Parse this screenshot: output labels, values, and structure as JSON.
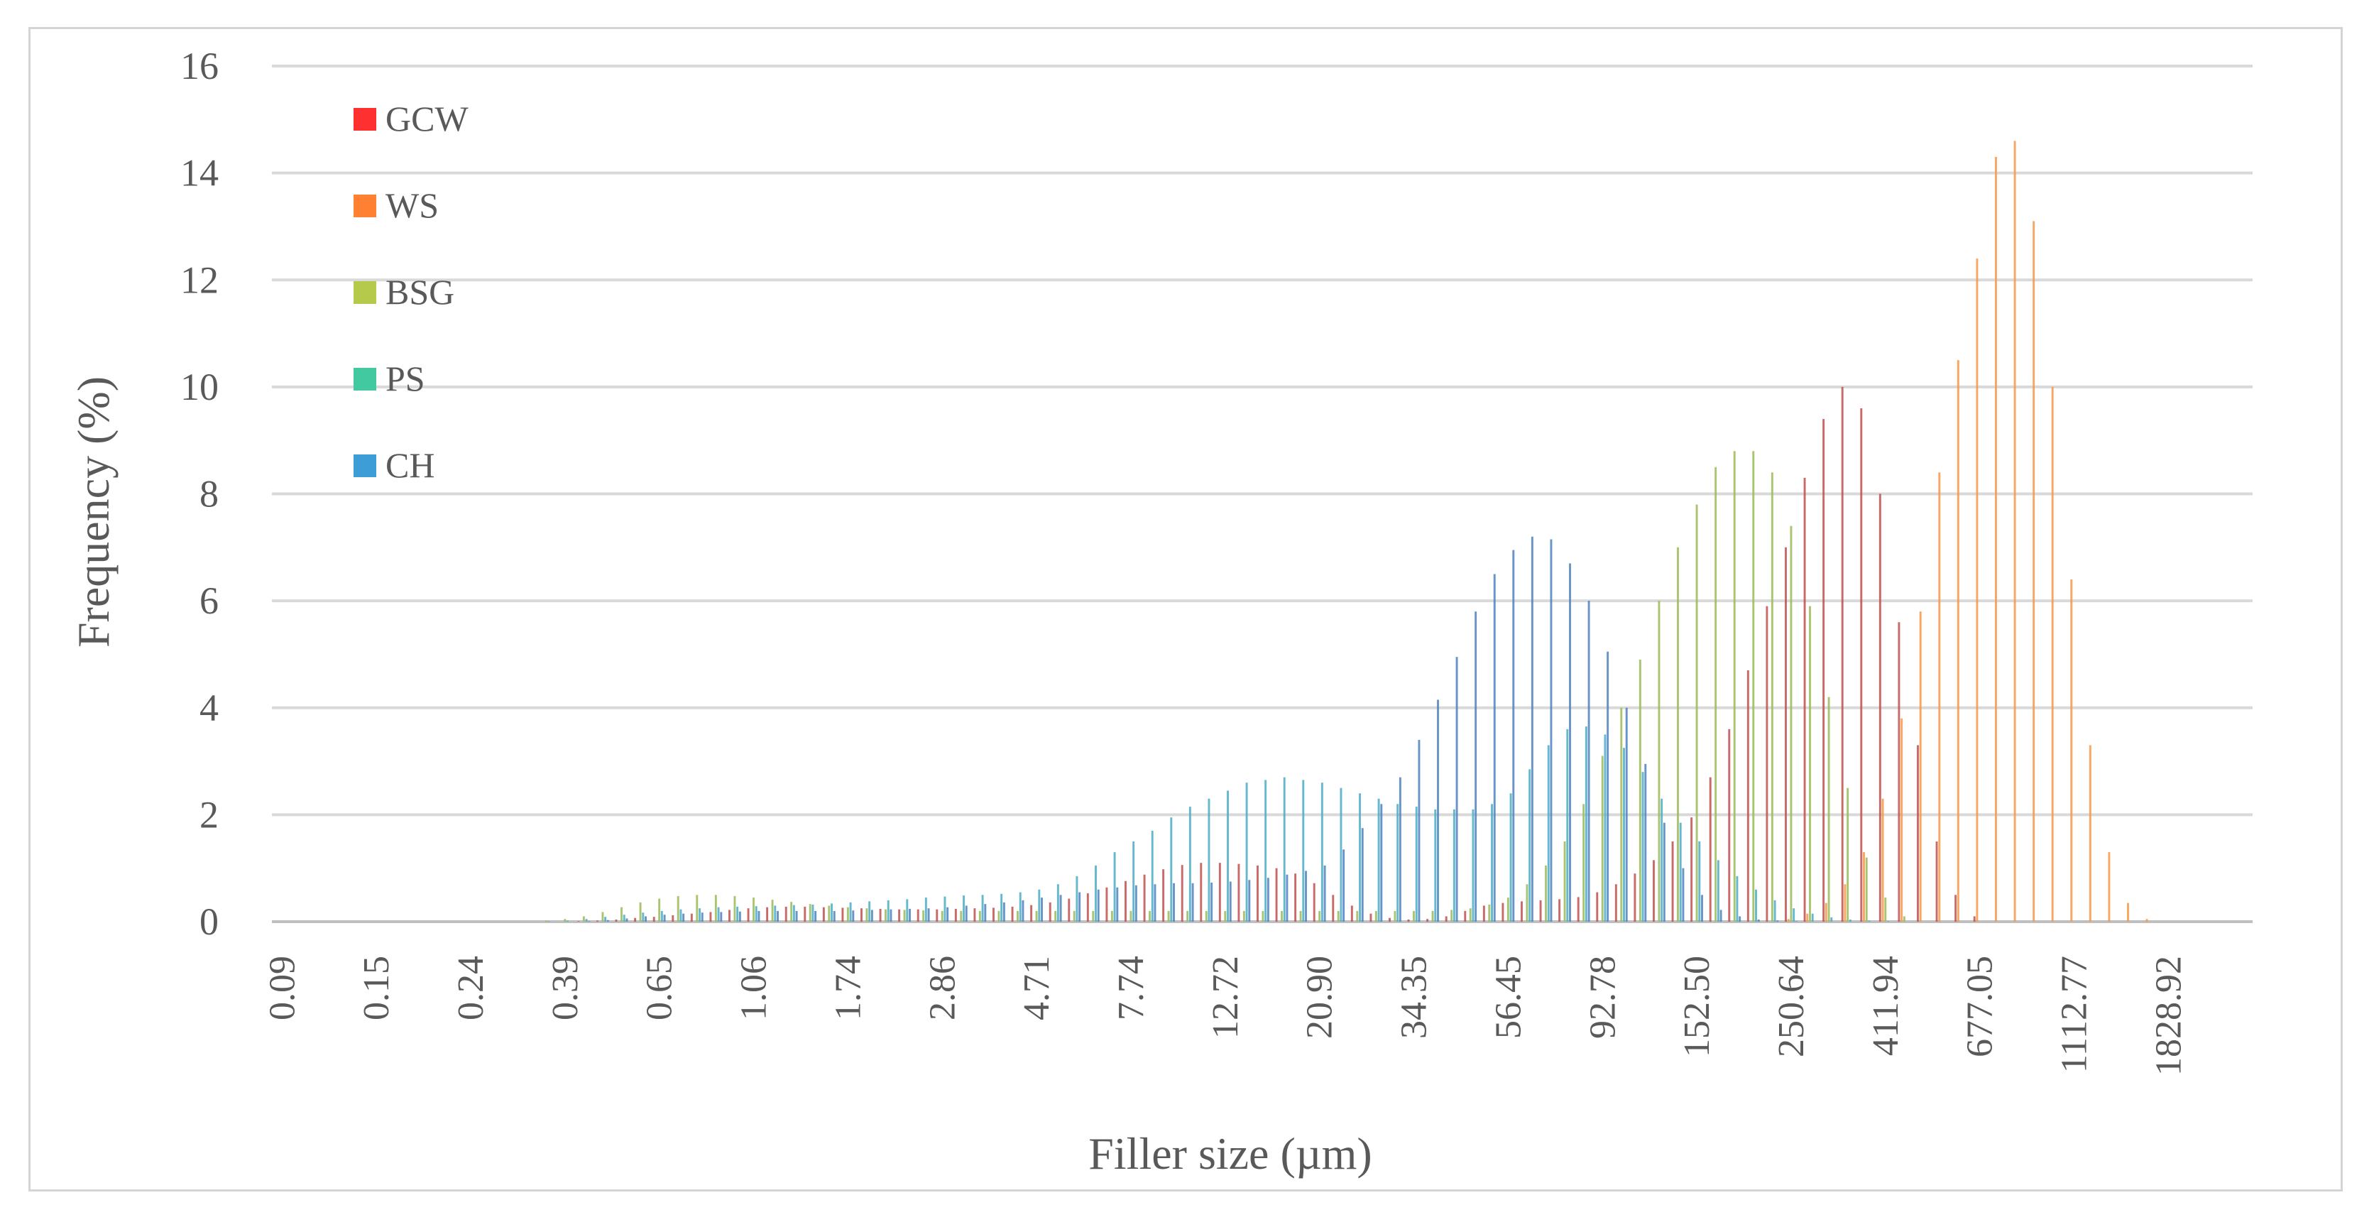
{
  "chart_data": {
    "type": "bar",
    "title": "",
    "xlabel": "Filler size (µm)",
    "ylabel": "Frequency (%)",
    "ylim": [
      0,
      16
    ],
    "yticks": [
      0,
      2,
      4,
      6,
      8,
      10,
      12,
      14,
      16
    ],
    "grid": "horizontal",
    "legend_position": "top-left",
    "x_tick_labels": [
      "0.09",
      "0.15",
      "0.24",
      "0.39",
      "0.65",
      "1.06",
      "1.74",
      "2.86",
      "4.71",
      "7.74",
      "12.72",
      "20.90",
      "34.35",
      "56.45",
      "92.78",
      "152.50",
      "250.64",
      "411.94",
      "677.05",
      "1112.77",
      "1828.92"
    ],
    "categories_per_tick": 5,
    "series": [
      {
        "name": "GCW",
        "color": "#c0504d",
        "values": [
          0,
          0,
          0,
          0,
          0,
          0,
          0,
          0,
          0,
          0,
          0,
          0,
          0,
          0,
          0,
          0,
          0.01,
          0.02,
          0.04,
          0.07,
          0.09,
          0.12,
          0.15,
          0.18,
          0.22,
          0.25,
          0.27,
          0.28,
          0.28,
          0.27,
          0.26,
          0.25,
          0.24,
          0.23,
          0.23,
          0.23,
          0.24,
          0.25,
          0.26,
          0.28,
          0.31,
          0.36,
          0.43,
          0.53,
          0.64,
          0.76,
          0.88,
          0.98,
          1.06,
          1.1,
          1.1,
          1.08,
          1.05,
          1.0,
          0.9,
          0.72,
          0.5,
          0.3,
          0.15,
          0.07,
          0.04,
          0.05,
          0.1,
          0.2,
          0.3,
          0.35,
          0.38,
          0.4,
          0.42,
          0.46,
          0.55,
          0.7,
          0.9,
          1.15,
          1.5,
          1.95,
          2.7,
          3.6,
          4.7,
          5.9,
          7.0,
          8.3,
          9.4,
          10.0,
          9.6,
          8.0,
          5.6,
          3.3,
          1.5,
          0.5,
          0.1,
          0,
          0,
          0,
          0,
          0,
          0,
          0,
          0,
          0,
          0,
          0,
          0,
          0,
          0
        ]
      },
      {
        "name": "WS",
        "color": "#f79646",
        "values": [
          0,
          0,
          0,
          0,
          0,
          0,
          0,
          0,
          0,
          0,
          0,
          0,
          0,
          0,
          0,
          0,
          0,
          0,
          0,
          0,
          0,
          0,
          0,
          0,
          0,
          0,
          0,
          0,
          0,
          0,
          0,
          0,
          0,
          0,
          0,
          0,
          0,
          0,
          0,
          0,
          0,
          0,
          0,
          0,
          0,
          0,
          0,
          0,
          0,
          0,
          0,
          0,
          0,
          0,
          0,
          0,
          0,
          0,
          0,
          0,
          0,
          0,
          0,
          0,
          0,
          0,
          0,
          0,
          0,
          0,
          0,
          0,
          0,
          0,
          0,
          0,
          0,
          0,
          0,
          0,
          0.05,
          0.15,
          0.35,
          0.7,
          1.3,
          2.3,
          3.8,
          5.8,
          8.4,
          10.5,
          12.4,
          14.3,
          14.6,
          13.1,
          10.0,
          6.4,
          3.3,
          1.3,
          0.35,
          0.05,
          0,
          0,
          0,
          0,
          0
        ]
      },
      {
        "name": "BSG",
        "color": "#9bbb59",
        "values": [
          0,
          0,
          0,
          0,
          0,
          0,
          0,
          0,
          0,
          0,
          0,
          0,
          0,
          0,
          0.02,
          0.05,
          0.1,
          0.18,
          0.27,
          0.36,
          0.43,
          0.48,
          0.5,
          0.5,
          0.48,
          0.45,
          0.41,
          0.37,
          0.33,
          0.3,
          0.27,
          0.25,
          0.23,
          0.22,
          0.21,
          0.2,
          0.2,
          0.2,
          0.2,
          0.2,
          0.2,
          0.2,
          0.2,
          0.2,
          0.2,
          0.2,
          0.2,
          0.2,
          0.2,
          0.2,
          0.2,
          0.2,
          0.2,
          0.2,
          0.2,
          0.2,
          0.2,
          0.2,
          0.2,
          0.2,
          0.2,
          0.2,
          0.22,
          0.25,
          0.32,
          0.45,
          0.7,
          1.05,
          1.5,
          2.2,
          3.1,
          4.0,
          4.9,
          6.0,
          7.0,
          7.8,
          8.5,
          8.8,
          8.8,
          8.4,
          7.4,
          5.9,
          4.2,
          2.5,
          1.2,
          0.45,
          0.1,
          0,
          0,
          0,
          0,
          0,
          0,
          0,
          0,
          0,
          0,
          0,
          0,
          0,
          0
        ]
      },
      {
        "name": "PS",
        "color": "#4bacc6",
        "values": [
          0,
          0,
          0,
          0,
          0,
          0,
          0,
          0,
          0,
          0,
          0,
          0,
          0,
          0,
          0.01,
          0.02,
          0.05,
          0.09,
          0.13,
          0.17,
          0.2,
          0.23,
          0.25,
          0.27,
          0.28,
          0.29,
          0.3,
          0.31,
          0.32,
          0.34,
          0.36,
          0.38,
          0.4,
          0.42,
          0.45,
          0.47,
          0.49,
          0.5,
          0.52,
          0.55,
          0.6,
          0.7,
          0.85,
          1.05,
          1.3,
          1.5,
          1.7,
          1.95,
          2.15,
          2.3,
          2.45,
          2.6,
          2.65,
          2.7,
          2.65,
          2.6,
          2.5,
          2.4,
          2.3,
          2.2,
          2.15,
          2.1,
          2.1,
          2.1,
          2.2,
          2.4,
          2.85,
          3.3,
          3.6,
          3.65,
          3.5,
          3.25,
          2.8,
          2.3,
          1.85,
          1.5,
          1.15,
          0.85,
          0.6,
          0.4,
          0.25,
          0.15,
          0.08,
          0.04,
          0.02,
          0.01,
          0,
          0,
          0,
          0,
          0,
          0,
          0,
          0,
          0,
          0,
          0,
          0,
          0,
          0,
          0,
          0,
          0,
          0,
          0
        ]
      },
      {
        "name": "CH",
        "color": "#4f81bd",
        "values": [
          0,
          0,
          0,
          0,
          0,
          0,
          0,
          0,
          0,
          0,
          0,
          0,
          0,
          0,
          0,
          0,
          0.01,
          0.03,
          0.06,
          0.1,
          0.13,
          0.15,
          0.17,
          0.18,
          0.19,
          0.2,
          0.2,
          0.2,
          0.2,
          0.2,
          0.21,
          0.22,
          0.23,
          0.24,
          0.25,
          0.27,
          0.3,
          0.33,
          0.36,
          0.4,
          0.45,
          0.5,
          0.55,
          0.6,
          0.64,
          0.68,
          0.7,
          0.72,
          0.72,
          0.73,
          0.75,
          0.78,
          0.82,
          0.88,
          0.95,
          1.05,
          1.35,
          1.75,
          2.2,
          2.7,
          3.4,
          4.15,
          4.95,
          5.8,
          6.5,
          6.95,
          7.2,
          7.15,
          6.7,
          6.0,
          5.05,
          4.0,
          2.95,
          1.85,
          1.0,
          0.5,
          0.22,
          0.1,
          0.04,
          0.02,
          0.01,
          0,
          0,
          0,
          0,
          0,
          0,
          0,
          0,
          0,
          0,
          0,
          0,
          0,
          0,
          0,
          0,
          0,
          0,
          0,
          0,
          0,
          0,
          0,
          0
        ]
      }
    ]
  }
}
